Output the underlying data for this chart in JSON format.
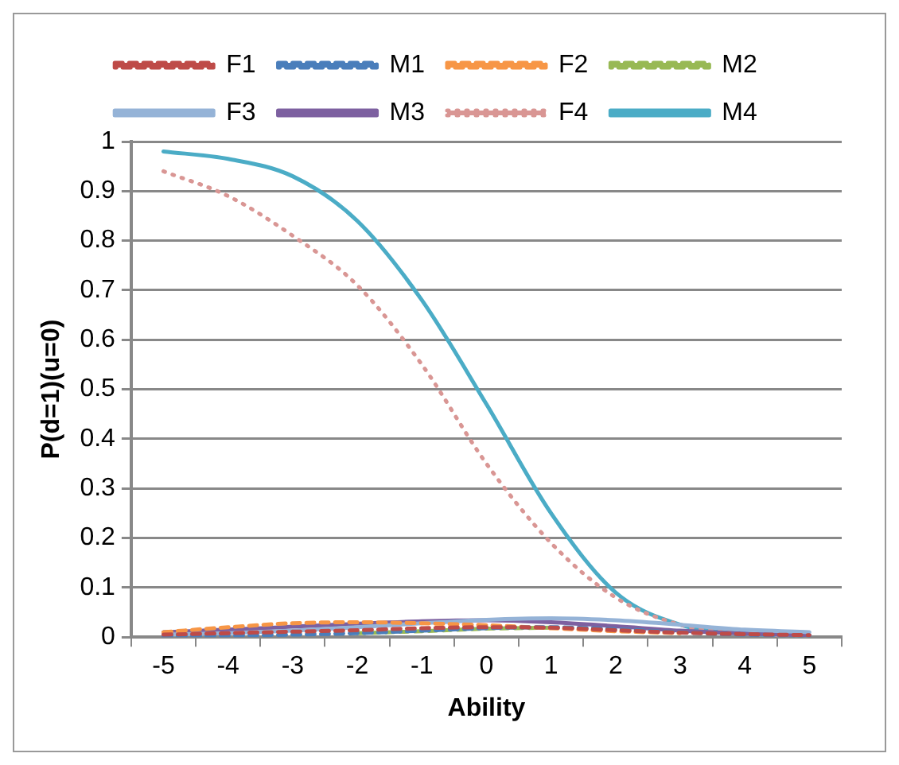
{
  "chart_data": {
    "type": "line",
    "xlabel": "Ability",
    "ylabel": "P(d=1)(u=0)",
    "x": [
      -5,
      -4,
      -3,
      -2,
      -1,
      0,
      1,
      2,
      3,
      4,
      5
    ],
    "series": [
      {
        "name": "F1",
        "color": "#be4b48",
        "line_style": "dashed",
        "values": [
          0.005,
          0.008,
          0.011,
          0.014,
          0.018,
          0.02,
          0.019,
          0.014,
          0.009,
          0.006,
          0.004
        ]
      },
      {
        "name": "M1",
        "color": "#4a7ebb",
        "line_style": "dashed",
        "values": [
          0.002,
          0.003,
          0.005,
          0.008,
          0.013,
          0.018,
          0.02,
          0.016,
          0.01,
          0.005,
          0.003
        ]
      },
      {
        "name": "F2",
        "color": "#f79646",
        "line_style": "dashed",
        "values": [
          0.01,
          0.02,
          0.028,
          0.03,
          0.028,
          0.024,
          0.018,
          0.012,
          0.008,
          null,
          null
        ]
      },
      {
        "name": "M2",
        "color": "#98b954",
        "line_style": "dashed",
        "values": [
          null,
          null,
          null,
          0.008,
          0.012,
          0.017,
          0.019,
          null,
          null,
          null,
          null
        ]
      },
      {
        "name": "F3",
        "color": "#95b3d7",
        "line_style": "solid",
        "values": [
          0.005,
          0.008,
          0.013,
          0.02,
          0.028,
          0.035,
          0.038,
          0.034,
          0.025,
          0.015,
          0.01
        ]
      },
      {
        "name": "M3",
        "color": "#7d60a0",
        "line_style": "solid",
        "values": [
          0.01,
          0.015,
          0.021,
          0.027,
          0.032,
          0.034,
          0.03,
          0.022,
          0.013,
          0.007,
          0.004
        ]
      },
      {
        "name": "F4",
        "color": "#d99694",
        "line_style": "dotted",
        "values": [
          0.94,
          0.89,
          0.81,
          0.71,
          0.55,
          0.35,
          0.19,
          0.08,
          0.025,
          0.007,
          0.002
        ]
      },
      {
        "name": "M4",
        "color": "#4bacc6",
        "line_style": "solid",
        "values": [
          0.98,
          0.965,
          0.93,
          0.84,
          0.68,
          0.47,
          0.25,
          0.09,
          0.025,
          0.007,
          0.003
        ]
      }
    ],
    "xlim": [
      -5.5,
      5.5
    ],
    "xticks": [
      {
        "value": -5.5,
        "label": null
      },
      -5,
      {
        "value": -4.5,
        "label": null
      },
      -4,
      {
        "value": -3.5,
        "label": null
      },
      -3,
      {
        "value": -2.5,
        "label": null
      },
      -2,
      {
        "value": -1.5,
        "label": null
      },
      -1,
      {
        "value": -0.5,
        "label": null
      },
      0,
      {
        "value": 0.5,
        "label": null
      },
      1,
      {
        "value": 1.5,
        "label": null
      },
      2,
      {
        "value": 2.5,
        "label": null
      },
      3,
      {
        "value": 3.5,
        "label": null
      },
      4,
      {
        "value": 4.5,
        "label": null
      },
      5,
      {
        "value": 5.5,
        "label": null
      }
    ],
    "ylim": [
      0,
      1
    ],
    "yticks": [
      0,
      0.1,
      0.2,
      0.3,
      0.4,
      0.5,
      0.6,
      0.7,
      0.8,
      0.9,
      1
    ],
    "grid": "y",
    "legend": "top",
    "marker": "none"
  }
}
